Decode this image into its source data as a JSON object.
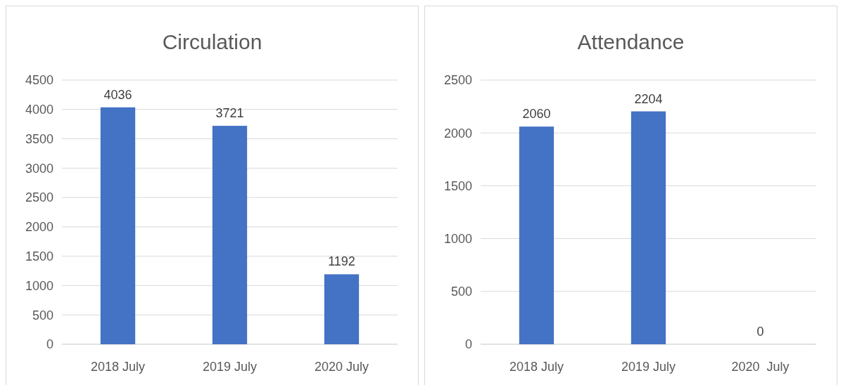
{
  "chart_data": [
    {
      "type": "bar",
      "title": "Circulation",
      "categories": [
        "2018 July",
        "2019 July",
        "2020 July"
      ],
      "values": [
        4036,
        3721,
        1192
      ],
      "color": "#4472c4",
      "ylim": [
        0,
        4500
      ],
      "yticks": [
        0,
        500,
        1000,
        1500,
        2000,
        2500,
        3000,
        3500,
        4000,
        4500
      ],
      "grid": "y",
      "data_labels": true
    },
    {
      "type": "bar",
      "title": "Attendance",
      "categories": [
        "2018 July",
        "2019 July",
        "2020  July"
      ],
      "values": [
        2060,
        2204,
        0
      ],
      "color": "#4472c4",
      "ylim": [
        0,
        2500
      ],
      "yticks": [
        0,
        500,
        1000,
        1500,
        2000,
        2500
      ],
      "grid": "y",
      "data_labels": true
    }
  ]
}
